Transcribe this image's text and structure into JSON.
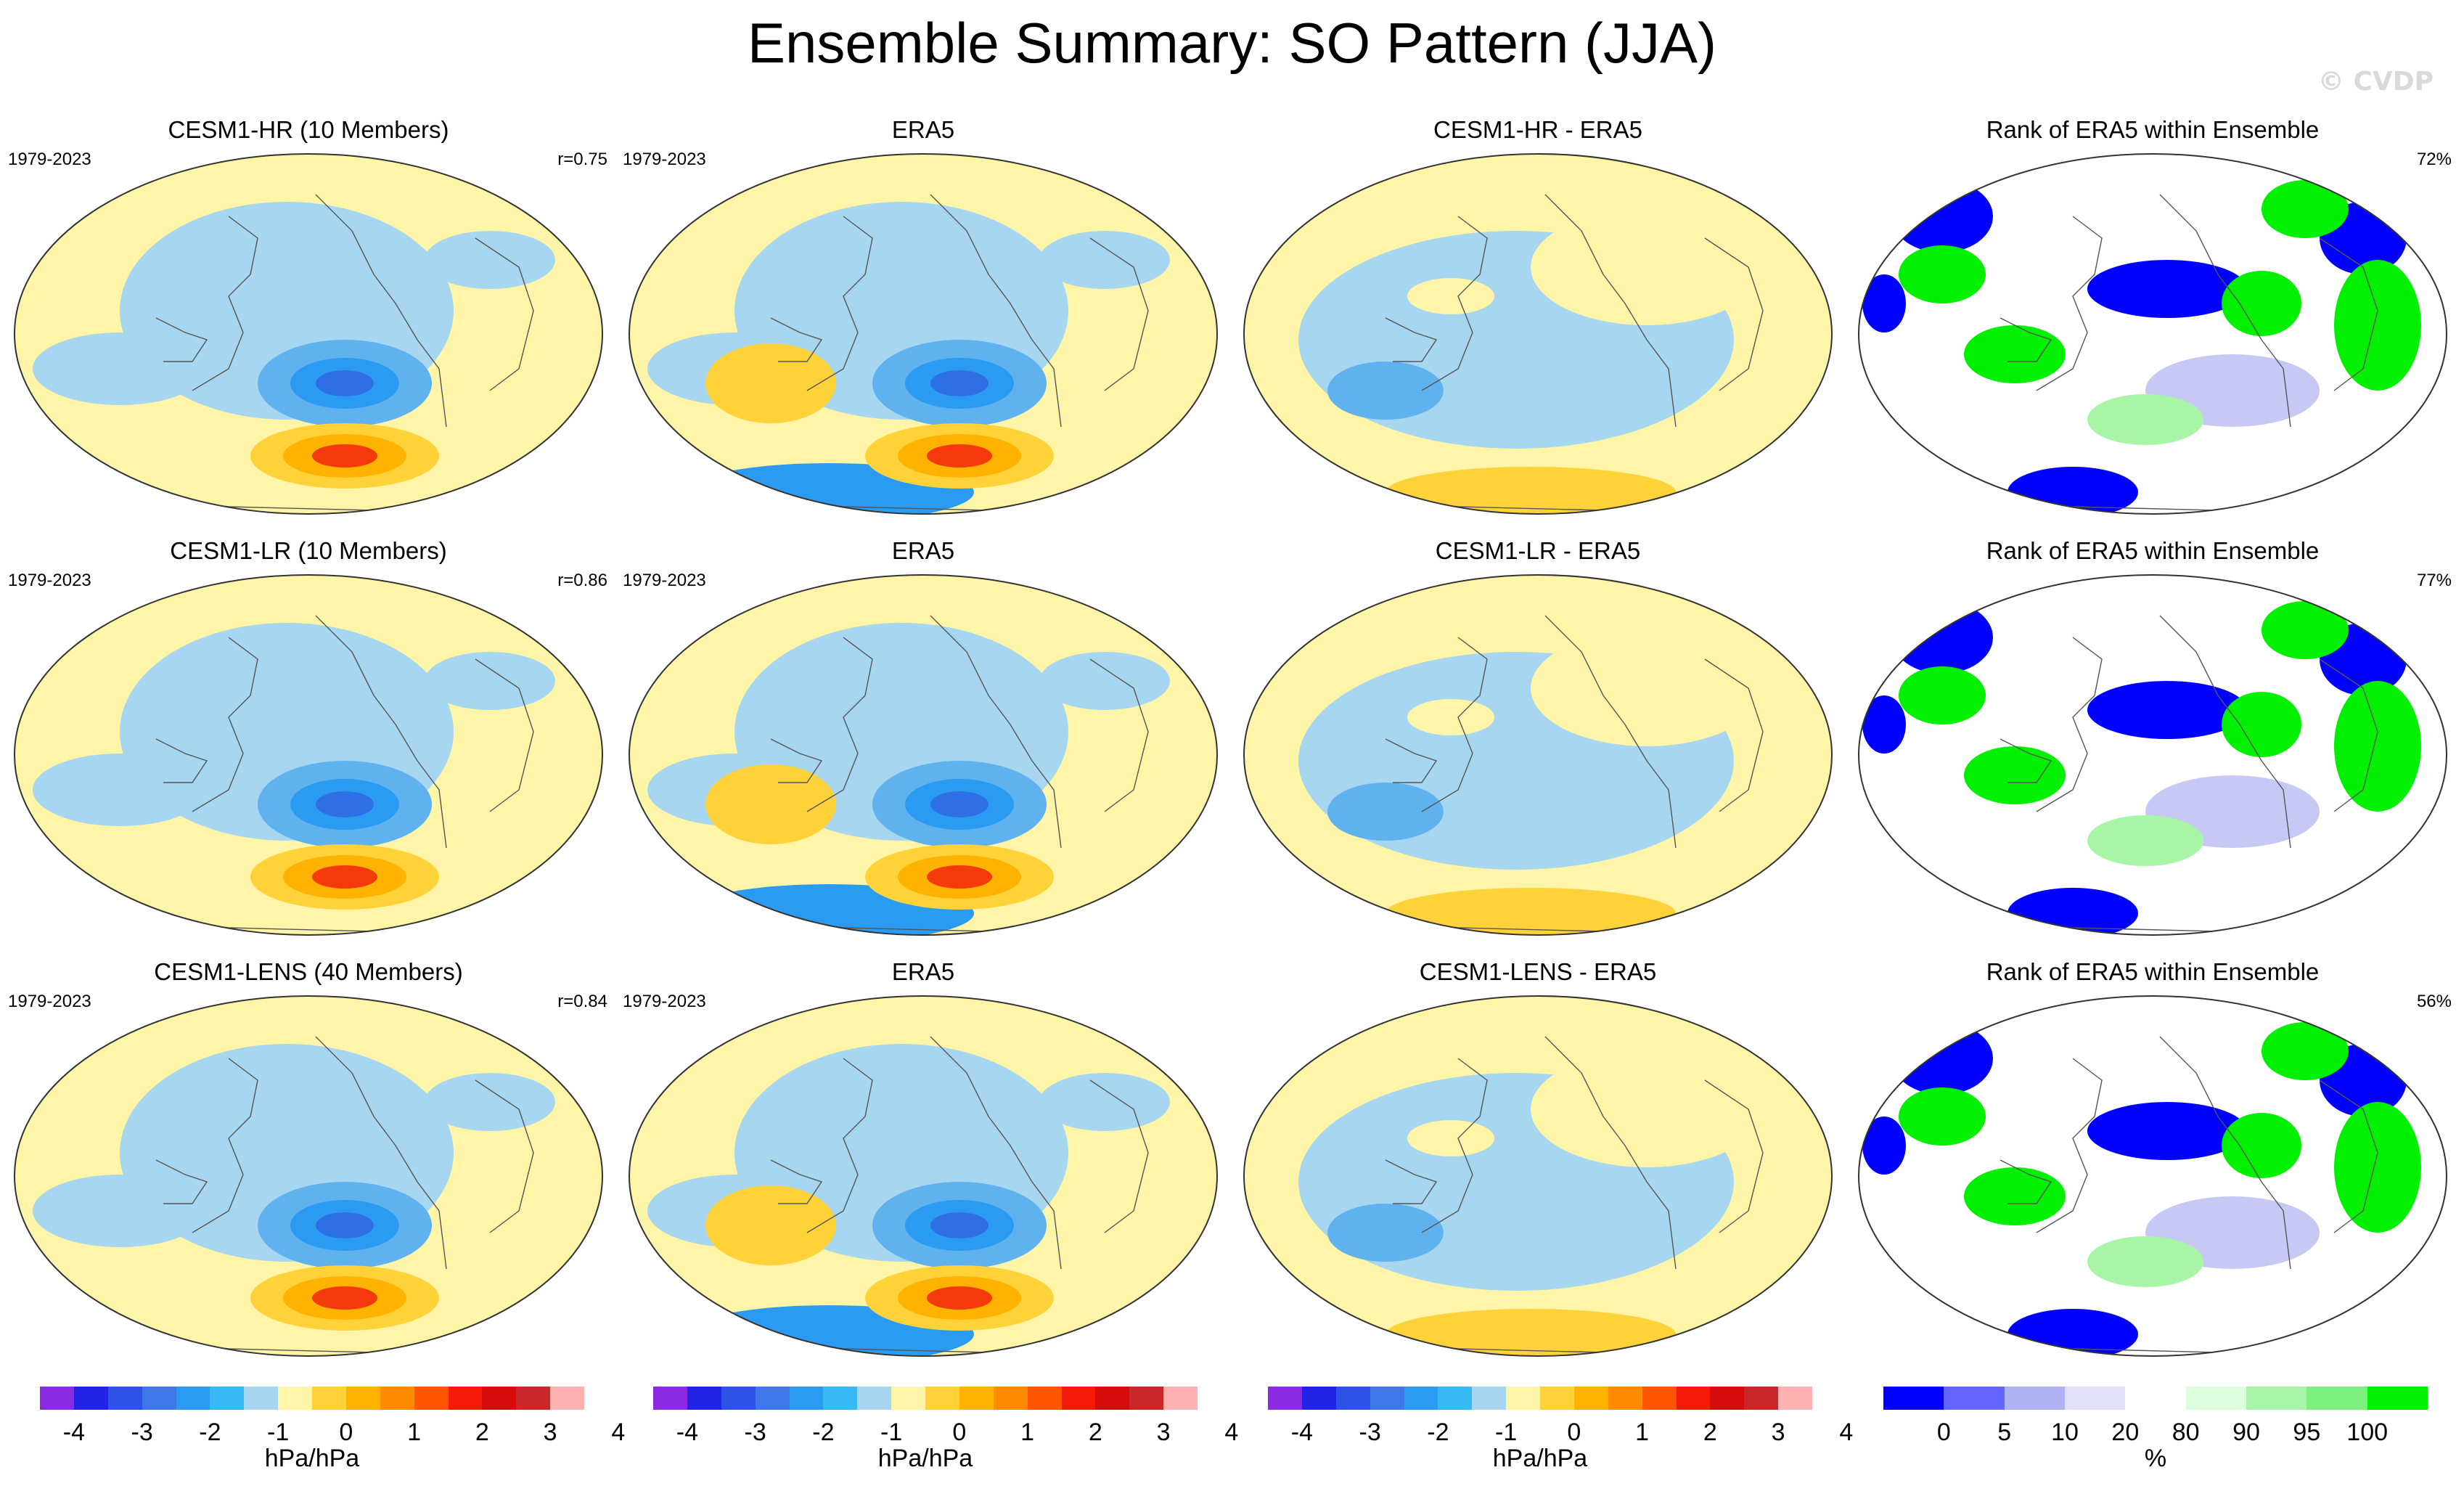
{
  "title": "Ensemble Summary: SO Pattern (JJA)",
  "copyright": "© CVDP",
  "rows": [
    {
      "panels": [
        {
          "title": "CESM1-HR (10 Members)",
          "years": "1979-2023",
          "corner": "r=0.75",
          "kind": "model"
        },
        {
          "title": "ERA5",
          "years": "1979-2023",
          "corner": "",
          "kind": "obs"
        },
        {
          "title": "CESM1-HR - ERA5",
          "years": "",
          "corner": "",
          "kind": "diff"
        },
        {
          "title": "Rank of ERA5 within Ensemble",
          "years": "",
          "corner": "72%",
          "kind": "rank"
        }
      ]
    },
    {
      "panels": [
        {
          "title": "CESM1-LR (10 Members)",
          "years": "1979-2023",
          "corner": "r=0.86",
          "kind": "model"
        },
        {
          "title": "ERA5",
          "years": "1979-2023",
          "corner": "",
          "kind": "obs"
        },
        {
          "title": "CESM1-LR - ERA5",
          "years": "",
          "corner": "",
          "kind": "diff"
        },
        {
          "title": "Rank of ERA5 within Ensemble",
          "years": "",
          "corner": "77%",
          "kind": "rank"
        }
      ]
    },
    {
      "panels": [
        {
          "title": "CESM1-LENS (40 Members)",
          "years": "1979-2023",
          "corner": "r=0.84",
          "kind": "model"
        },
        {
          "title": "ERA5",
          "years": "1979-2023",
          "corner": "",
          "kind": "obs"
        },
        {
          "title": "CESM1-LENS - ERA5",
          "years": "",
          "corner": "",
          "kind": "diff"
        },
        {
          "title": "Rank of ERA5 within Ensemble",
          "years": "",
          "corner": "56%",
          "kind": "rank"
        }
      ]
    }
  ],
  "chart_data": {
    "type": "heatmap",
    "title": "Ensemble Summary: SO Pattern (JJA)",
    "season": "JJA",
    "period": "1979-2023",
    "pattern_correlations": {
      "CESM1-HR": 0.75,
      "CESM1-LR": 0.86,
      "CESM1-LENS": 0.84
    },
    "rank_percent_within_ensemble": {
      "CESM1-HR": 72,
      "CESM1-LR": 77,
      "CESM1-LENS": 56
    },
    "colorbars": [
      {
        "label": "hPa/hPa",
        "ticks": [
          "-4",
          "-3",
          "-2",
          "-1",
          "0",
          "1",
          "2",
          "3",
          "4"
        ],
        "colors": [
          "#8a2be2",
          "#2323e6",
          "#2e52e6",
          "#3e78e6",
          "#2b9bf2",
          "#37b9f5",
          "#a6d6f0",
          "#fff5a8",
          "#ffd23a",
          "#ffb200",
          "#ff8c00",
          "#ff5500",
          "#f41a0a",
          "#d60b0b",
          "#c82828",
          "#ffb0b0"
        ]
      },
      {
        "label": "hPa/hPa",
        "ticks": [
          "-4",
          "-3",
          "-2",
          "-1",
          "0",
          "1",
          "2",
          "3",
          "4"
        ],
        "colors": [
          "#8a2be2",
          "#2323e6",
          "#2e52e6",
          "#3e78e6",
          "#2b9bf2",
          "#37b9f5",
          "#a6d6f0",
          "#fff5a8",
          "#ffd23a",
          "#ffb200",
          "#ff8c00",
          "#ff5500",
          "#f41a0a",
          "#d60b0b",
          "#c82828",
          "#ffb0b0"
        ]
      },
      {
        "label": "hPa/hPa",
        "ticks": [
          "-4",
          "-3",
          "-2",
          "-1",
          "0",
          "1",
          "2",
          "3",
          "4"
        ],
        "colors": [
          "#8a2be2",
          "#2323e6",
          "#2e52e6",
          "#3e78e6",
          "#2b9bf2",
          "#37b9f5",
          "#a6d6f0",
          "#fff5a8",
          "#ffd23a",
          "#ffb200",
          "#ff8c00",
          "#ff5500",
          "#f41a0a",
          "#d60b0b",
          "#c82828",
          "#ffb0b0"
        ]
      },
      {
        "label": "%",
        "ticks": [
          "0",
          "5",
          "10",
          "20",
          "80",
          "90",
          "95",
          "100"
        ],
        "colors": [
          "#0000ff",
          "#6464ff",
          "#b0b0f5",
          "#e0e0f8",
          "#ffffff",
          "#dcffdc",
          "#a8f5a8",
          "#7cf07c",
          "#00f000"
        ]
      }
    ],
    "ramp_colors": {
      "yellow": "#fff5a8",
      "lightblue": "#a6d6f0",
      "midblue": "#5fb2ee",
      "blue": "#2b9bf2",
      "deepblue": "#2e6fe6",
      "orange": "#ffb200",
      "darkorange": "#ff8c00",
      "red": "#f43a0a",
      "gold": "#ffd23a",
      "rank_green": "#00f000",
      "rank_lightgreen": "#a8f5a8",
      "rank_blue": "#0000ff",
      "rank_lavender": "#c8c8f5"
    }
  }
}
